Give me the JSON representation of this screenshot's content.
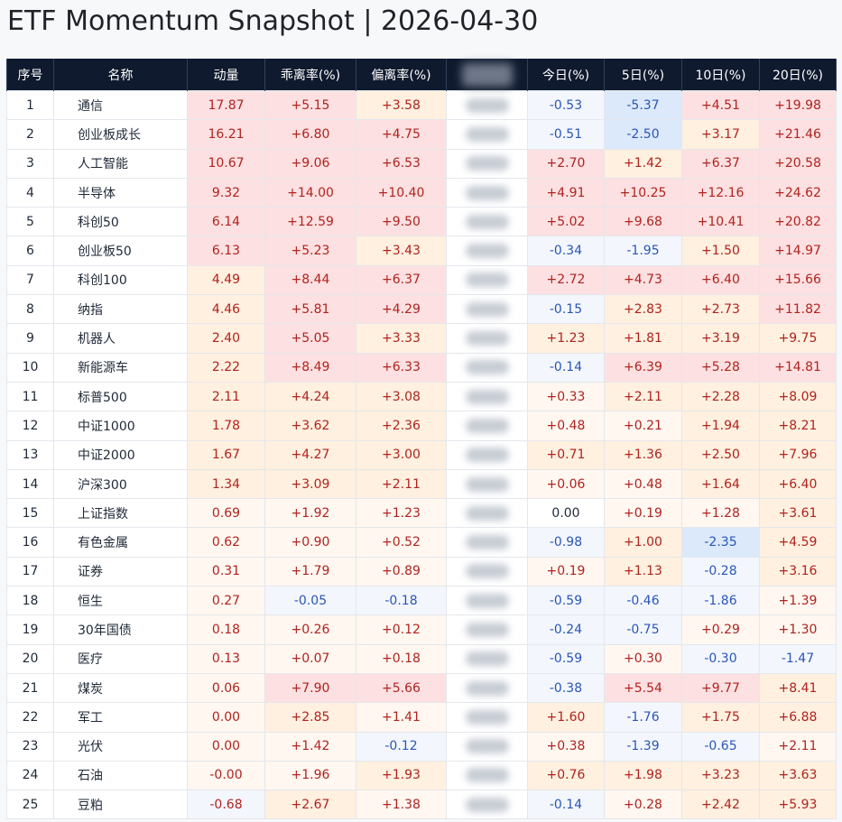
{
  "header": {
    "title": "ETF Momentum Snapshot  |  2026-04-30"
  },
  "table": {
    "columns": [
      "序号",
      "名称",
      "动量",
      "乖离率(%)",
      "偏离率(%)",
      "",
      "今日(%)",
      "5日(%)",
      "10日(%)",
      "20日(%)"
    ],
    "rows": [
      {
        "idx": "1",
        "name": "通信",
        "momentum": "17.87",
        "bias": "+5.15",
        "dev": "+3.58",
        "today": "-0.53",
        "d5": "-5.37",
        "d10": "+4.51",
        "d20": "+19.98"
      },
      {
        "idx": "2",
        "name": "创业板成长",
        "momentum": "16.21",
        "bias": "+6.80",
        "dev": "+4.75",
        "today": "-0.51",
        "d5": "-2.50",
        "d10": "+3.17",
        "d20": "+21.46"
      },
      {
        "idx": "3",
        "name": "人工智能",
        "momentum": "10.67",
        "bias": "+9.06",
        "dev": "+6.53",
        "today": "+2.70",
        "d5": "+1.42",
        "d10": "+6.37",
        "d20": "+20.58"
      },
      {
        "idx": "4",
        "name": "半导体",
        "momentum": "9.32",
        "bias": "+14.00",
        "dev": "+10.40",
        "today": "+4.91",
        "d5": "+10.25",
        "d10": "+12.16",
        "d20": "+24.62"
      },
      {
        "idx": "5",
        "name": "科创50",
        "momentum": "6.14",
        "bias": "+12.59",
        "dev": "+9.50",
        "today": "+5.02",
        "d5": "+9.68",
        "d10": "+10.41",
        "d20": "+20.82"
      },
      {
        "idx": "6",
        "name": "创业板50",
        "momentum": "6.13",
        "bias": "+5.23",
        "dev": "+3.43",
        "today": "-0.34",
        "d5": "-1.95",
        "d10": "+1.50",
        "d20": "+14.97"
      },
      {
        "idx": "7",
        "name": "科创100",
        "momentum": "4.49",
        "bias": "+8.44",
        "dev": "+6.37",
        "today": "+2.72",
        "d5": "+4.73",
        "d10": "+6.40",
        "d20": "+15.66"
      },
      {
        "idx": "8",
        "name": "纳指",
        "momentum": "4.46",
        "bias": "+5.81",
        "dev": "+4.29",
        "today": "-0.15",
        "d5": "+2.83",
        "d10": "+2.73",
        "d20": "+11.82"
      },
      {
        "idx": "9",
        "name": "机器人",
        "momentum": "2.40",
        "bias": "+5.05",
        "dev": "+3.33",
        "today": "+1.23",
        "d5": "+1.81",
        "d10": "+3.19",
        "d20": "+9.75"
      },
      {
        "idx": "10",
        "name": "新能源车",
        "momentum": "2.22",
        "bias": "+8.49",
        "dev": "+6.33",
        "today": "-0.14",
        "d5": "+6.39",
        "d10": "+5.28",
        "d20": "+14.81"
      },
      {
        "idx": "11",
        "name": "标普500",
        "momentum": "2.11",
        "bias": "+4.24",
        "dev": "+3.08",
        "today": "+0.33",
        "d5": "+2.11",
        "d10": "+2.28",
        "d20": "+8.09"
      },
      {
        "idx": "12",
        "name": "中证1000",
        "momentum": "1.78",
        "bias": "+3.62",
        "dev": "+2.36",
        "today": "+0.48",
        "d5": "+0.21",
        "d10": "+1.94",
        "d20": "+8.21"
      },
      {
        "idx": "13",
        "name": "中证2000",
        "momentum": "1.67",
        "bias": "+4.27",
        "dev": "+3.00",
        "today": "+0.71",
        "d5": "+1.36",
        "d10": "+2.50",
        "d20": "+7.96"
      },
      {
        "idx": "14",
        "name": "沪深300",
        "momentum": "1.34",
        "bias": "+3.09",
        "dev": "+2.11",
        "today": "+0.06",
        "d5": "+0.48",
        "d10": "+1.64",
        "d20": "+6.40"
      },
      {
        "idx": "15",
        "name": "上证指数",
        "momentum": "0.69",
        "bias": "+1.92",
        "dev": "+1.23",
        "today": "0.00",
        "d5": "+0.19",
        "d10": "+1.28",
        "d20": "+3.61"
      },
      {
        "idx": "16",
        "name": "有色金属",
        "momentum": "0.62",
        "bias": "+0.90",
        "dev": "+0.52",
        "today": "-0.98",
        "d5": "+1.00",
        "d10": "-2.35",
        "d20": "+4.59"
      },
      {
        "idx": "17",
        "name": "证券",
        "momentum": "0.31",
        "bias": "+1.79",
        "dev": "+0.89",
        "today": "+0.19",
        "d5": "+1.13",
        "d10": "-0.28",
        "d20": "+3.16"
      },
      {
        "idx": "18",
        "name": "恒生",
        "momentum": "0.27",
        "bias": "-0.05",
        "dev": "-0.18",
        "today": "-0.59",
        "d5": "-0.46",
        "d10": "-1.86",
        "d20": "+1.39"
      },
      {
        "idx": "19",
        "name": "30年国债",
        "momentum": "0.18",
        "bias": "+0.26",
        "dev": "+0.12",
        "today": "-0.24",
        "d5": "-0.75",
        "d10": "+0.29",
        "d20": "+1.30"
      },
      {
        "idx": "20",
        "name": "医疗",
        "momentum": "0.13",
        "bias": "+0.07",
        "dev": "+0.18",
        "today": "-0.59",
        "d5": "+0.30",
        "d10": "-0.30",
        "d20": "-1.47"
      },
      {
        "idx": "21",
        "name": "煤炭",
        "momentum": "0.06",
        "bias": "+7.90",
        "dev": "+5.66",
        "today": "-0.38",
        "d5": "+5.54",
        "d10": "+9.77",
        "d20": "+8.41"
      },
      {
        "idx": "22",
        "name": "军工",
        "momentum": "0.00",
        "bias": "+2.85",
        "dev": "+1.41",
        "today": "+1.60",
        "d5": "-1.76",
        "d10": "+1.75",
        "d20": "+6.88"
      },
      {
        "idx": "23",
        "name": "光伏",
        "momentum": "0.00",
        "bias": "+1.42",
        "dev": "-0.12",
        "today": "+0.38",
        "d5": "-1.39",
        "d10": "-0.65",
        "d20": "+2.11"
      },
      {
        "idx": "24",
        "name": "石油",
        "momentum": "-0.00",
        "bias": "+1.96",
        "dev": "+1.93",
        "today": "+0.76",
        "d5": "+1.98",
        "d10": "+3.23",
        "d20": "+3.63"
      },
      {
        "idx": "25",
        "name": "豆粕",
        "momentum": "-0.68",
        "bias": "+2.67",
        "dev": "+1.38",
        "today": "-0.14",
        "d5": "+0.28",
        "d10": "+2.42",
        "d20": "+5.93"
      }
    ]
  },
  "colors": {
    "header_bg": "#0f1a2e",
    "positive_text": "#b0231f",
    "negative_text": "#2a55b8",
    "heat_positive_strong": "#fde0e1",
    "heat_positive_mid": "#fff0df",
    "heat_positive_light": "#fff7f0",
    "heat_negative_strong": "#dce9fb",
    "heat_negative_light": "#f3f7fd"
  }
}
